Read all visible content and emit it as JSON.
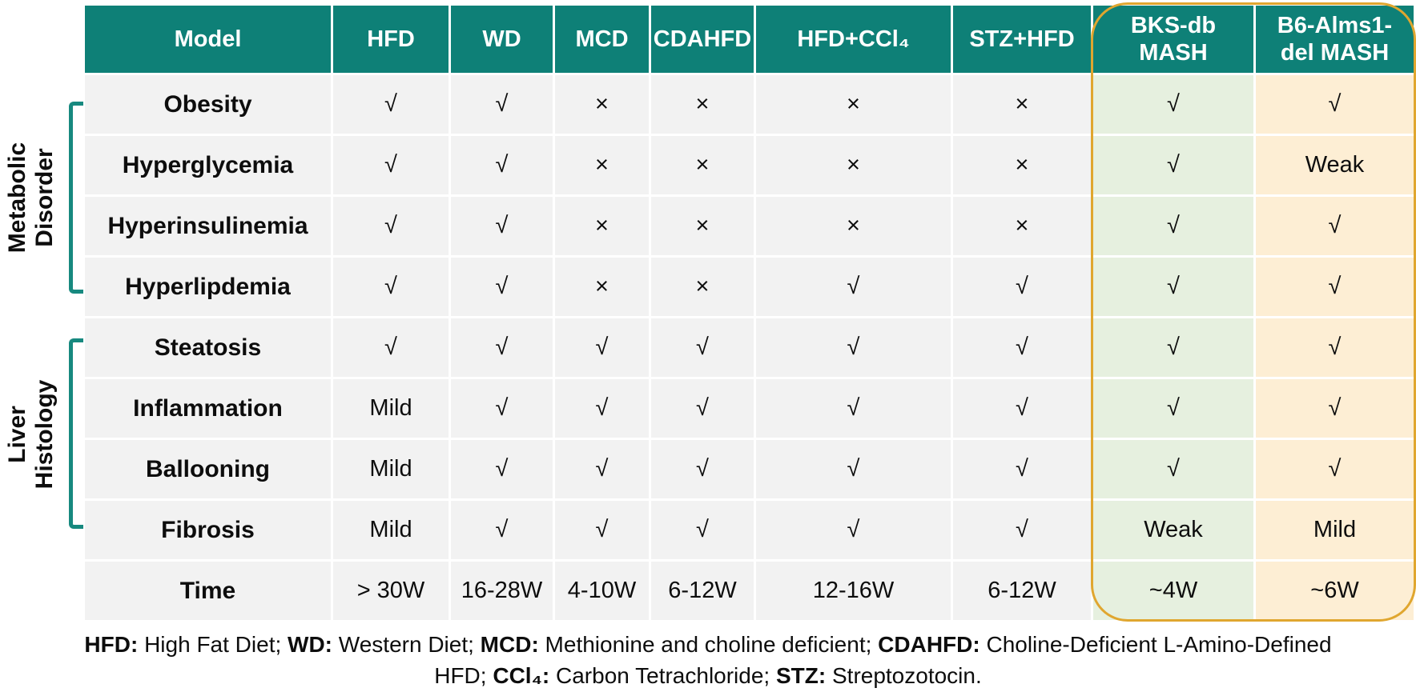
{
  "table": {
    "columns": [
      "Model",
      "HFD",
      "WD",
      "MCD",
      "CDAHFD",
      "HFD+CCl₄",
      "STZ+HFD",
      "BKS-db MASH",
      "B6-Alms1-del MASH"
    ],
    "rows": [
      {
        "label": "Obesity",
        "values": [
          "√",
          "√",
          "×",
          "×",
          "×",
          "×",
          "√",
          "√"
        ]
      },
      {
        "label": "Hyperglycemia",
        "values": [
          "√",
          "√",
          "×",
          "×",
          "×",
          "×",
          "√",
          "Weak"
        ]
      },
      {
        "label": "Hyperinsulinemia",
        "values": [
          "√",
          "√",
          "×",
          "×",
          "×",
          "×",
          "√",
          "√"
        ]
      },
      {
        "label": "Hyperlipdemia",
        "values": [
          "√",
          "√",
          "×",
          "×",
          "√",
          "√",
          "√",
          "√"
        ]
      },
      {
        "label": "Steatosis",
        "values": [
          "√",
          "√",
          "√",
          "√",
          "√",
          "√",
          "√",
          "√"
        ]
      },
      {
        "label": "Inflammation",
        "values": [
          "Mild",
          "√",
          "√",
          "√",
          "√",
          "√",
          "√",
          "√"
        ]
      },
      {
        "label": "Ballooning",
        "values": [
          "Mild",
          "√",
          "√",
          "√",
          "√",
          "√",
          "√",
          "√"
        ]
      },
      {
        "label": "Fibrosis",
        "values": [
          "Mild",
          "√",
          "√",
          "√",
          "√",
          "√",
          "Weak",
          "Mild"
        ]
      },
      {
        "label": "Time",
        "values": [
          "> 30W",
          "16-28W",
          "4-10W",
          "6-12W",
          "12-16W",
          "6-12W",
          "~4W",
          "~6W"
        ]
      }
    ],
    "highlighted_columns": [
      "BKS-db MASH",
      "B6-Alms1-del MASH"
    ]
  },
  "side_groups": [
    {
      "line1": "Metabolic",
      "line2": "Disorder"
    },
    {
      "line1": "Liver",
      "line2": "Histology"
    }
  ],
  "footnote": {
    "line1_segments": [
      {
        "t": "HFD:",
        "b": true
      },
      {
        "t": " High Fat Diet; ",
        "b": false
      },
      {
        "t": "WD:",
        "b": true
      },
      {
        "t": " Western Diet; ",
        "b": false
      },
      {
        "t": "MCD:",
        "b": true
      },
      {
        "t": " Methionine and choline deficient; ",
        "b": false
      },
      {
        "t": "CDAHFD:",
        "b": true
      },
      {
        "t": " Choline-Deficient  L-Amino-Defined",
        "b": false
      }
    ],
    "line2_segments": [
      {
        "t": "HFD; ",
        "b": false
      },
      {
        "t": "CCl₄:",
        "b": true
      },
      {
        "t": " Carbon Tetrachloride; ",
        "b": false
      },
      {
        "t": "STZ:",
        "b": true
      },
      {
        "t": " Streptozotocin.",
        "b": false
      }
    ]
  },
  "symbols": {
    "present": "√",
    "absent": "×"
  },
  "colors": {
    "header_bg": "#0e8077",
    "row_bg": "#f2f2f2",
    "green_col": "#e6f0df",
    "cream_col": "#fdeed4",
    "gold": "#e0a62f",
    "bracket": "#17897f"
  }
}
